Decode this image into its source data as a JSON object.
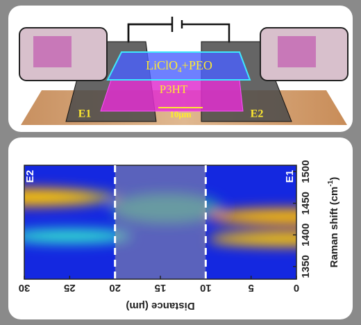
{
  "schematic": {
    "electrolyte": {
      "text": "LiClO",
      "subscript": "4",
      "suffix": "+PEO"
    },
    "polymer": "P3HT",
    "electrode_left": "E1",
    "electrode_right": "E2",
    "gap": "10μm"
  },
  "plot": {
    "label_left": "E2",
    "label_right": "E1",
    "x_axis": {
      "label": "Distance (μm)",
      "lim": [
        30,
        0
      ],
      "ticks": [
        30,
        25,
        20,
        15,
        10,
        5,
        0
      ]
    },
    "y_axis": {
      "label": {
        "text": "Raman shift (cm",
        "superscript": "-1",
        "suffix": ")"
      },
      "lim": [
        1330,
        1510
      ],
      "ticks": [
        1350,
        1400,
        1450,
        1500
      ]
    },
    "dashed_lines": [
      20,
      10
    ]
  }
}
